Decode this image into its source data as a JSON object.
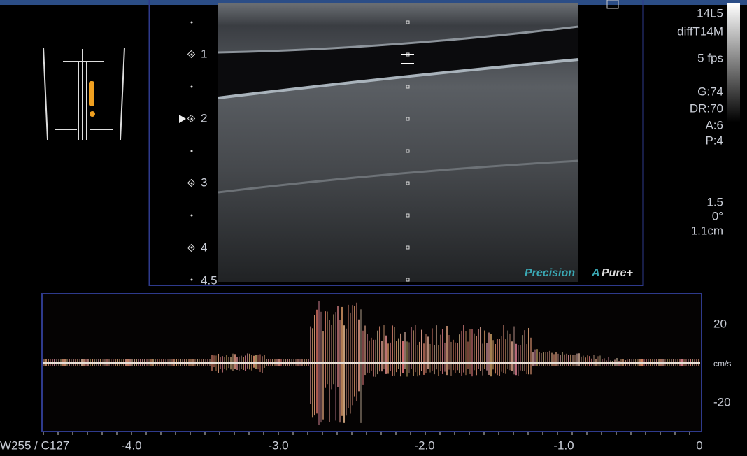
{
  "header": {
    "probe": "14L5",
    "preset": "diffT14M",
    "frame_rate": "5 fps"
  },
  "settings": {
    "gain": "G:74",
    "dynamic_range": "DR:70",
    "a": "A:6",
    "p": "P:4",
    "angle_factor": "1.5",
    "angle": "0°",
    "gate": "1.1cm"
  },
  "depth_markers": [
    "1",
    "2",
    "3",
    "4",
    "4.5"
  ],
  "brand": {
    "precision": "Precision",
    "apure": "A",
    "pure": "Pure+"
  },
  "doppler": {
    "scale_top": "20",
    "unit": "cm/s",
    "scale_bottom": "-20",
    "time_ticks": [
      "-4.0",
      "-3.0",
      "-2.0",
      "-1.0",
      "0"
    ]
  },
  "window_level": "W255 / C127"
}
